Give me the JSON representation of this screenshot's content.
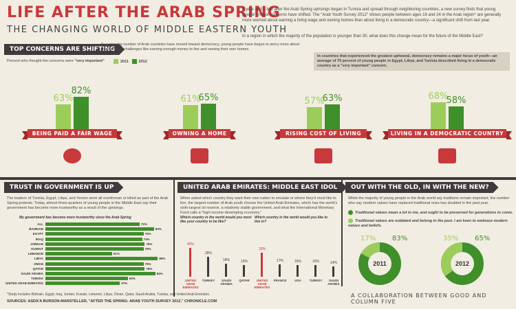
{
  "header": {
    "title": "LIFE AFTER THE ARAB SPRING",
    "subtitle": "THE CHANGING WORLD OF MIDDLE EASTERN YOUTH",
    "intro": "A year and a half after the Arab Spring uprisings began in Tunisia and spread through neighboring countries, a new survey finds that young people's major concerns have shifted. The \"Arab Youth Survey 2012\" shows people between ages 18 and 24 in the Arab region* are generally more worried about earning a living wage and owning homes than about living in a democratic country—a significant shift from last year.",
    "intro2": "In a region in which the majority of the population is younger than 30, what does this change mean for the future of the Middle East?"
  },
  "concerns": {
    "banner": "TOP CONCERNS ARE SHIFTING",
    "text": "As a growing number of Arab countries have moved toward democracy, young people have begun to worry more about smaller-scale challenges like earning enough money to live and owning their own homes.",
    "prompt_prefix": "Percent who thought the concerns were ",
    "prompt_emph": "\"very important\"",
    "legend": [
      "2011",
      "2012"
    ],
    "callout": "In countries that experienced the greatest upheaval, democracy remains a major focus of youth—an average of 70 percent of young people in Egypt, Libya, and Tunisia described living in a democratic country as a \"very important\" concern.",
    "items": [
      {
        "label": "BEING PAID A FAIR WAGE",
        "v2011": "63%",
        "v2012": "82%"
      },
      {
        "label": "OWNING A HOME",
        "v2011": "61%",
        "v2012": "65%"
      },
      {
        "label": "RISING COST OF LIVING",
        "v2011": "57%",
        "v2012": "63%"
      },
      {
        "label": "LIVING IN A DEMOCRATIC COUNTRY",
        "v2011": "68%",
        "v2012": "58%"
      }
    ]
  },
  "trust": {
    "banner": "TRUST IN GOVERNMENT IS UP",
    "text": "The leaders of Tunisia, Egypt, Libya, and Yemen were all overthrown or killed as part of the Arab Spring protests. Today, almost three-quarters of young people in the Middle East say their government has become more trustworthy as a result of the uprisings.",
    "chart_title": "My government has become more trustworthy since the Arab Spring",
    "rows": [
      {
        "name": "ALL",
        "value": 72,
        "label": "72%"
      },
      {
        "name": "BAHRAIN",
        "value": 83,
        "label": "83%"
      },
      {
        "name": "EGYPT",
        "value": 75,
        "label": "75%"
      },
      {
        "name": "IRAQ",
        "value": 74,
        "label": "74%"
      },
      {
        "name": "JORDAN",
        "value": 76,
        "label": "76%"
      },
      {
        "name": "KUWAIT",
        "value": 75,
        "label": "75%"
      },
      {
        "name": "LEBANON",
        "value": 51,
        "label": "51%"
      },
      {
        "name": "LIBYA",
        "value": 86,
        "label": "86%"
      },
      {
        "name": "OMAN",
        "value": 75,
        "label": "75%"
      },
      {
        "name": "QATAR",
        "value": 76,
        "label": "76%"
      },
      {
        "name": "SAUDI ARABIA",
        "value": 84,
        "label": "84%"
      },
      {
        "name": "TUNISIA",
        "value": 63,
        "label": "63%"
      },
      {
        "name": "UNITED ARAB EMIRATES",
        "value": 57,
        "label": "57%"
      }
    ],
    "footnote": "*Study includes Bahrain, Egypt, Iraq, Jordan, Kuwait, Lebanon, Libya, Oman, Qatar, Saudi Arabia, Tunisia, and United Arab Emirates."
  },
  "uae": {
    "banner": "UNITED ARAB EMIRATES: MIDDLE EAST IDOL",
    "text": "When asked which country they want their own nation to emulate or where they'd most like to live, the largest number of Arab youth choose the United Arab Emirates, which has the world's sixth-largest oil reserve, a relatively stable government, and what the International Monetary Fund calls a \"high-income developing economy.\"",
    "q1": "Which country in the world would you most like your country to be like?",
    "q2": "Which country in the world would you like to live in?",
    "chart1": [
      {
        "name": "UNITED ARAB EMIRATES",
        "value": 40,
        "label": "40%",
        "highlight": true
      },
      {
        "name": "TURKEY",
        "value": 28,
        "label": "28%"
      },
      {
        "name": "SAUDI ARABIA",
        "value": 18,
        "label": "18%"
      },
      {
        "name": "QATAR",
        "value": 16,
        "label": "16%"
      }
    ],
    "chart2": [
      {
        "name": "UNITED ARAB EMIRATES",
        "value": 33,
        "label": "33%",
        "highlight": true
      },
      {
        "name": "FRANCE",
        "value": 17,
        "label": "17%"
      },
      {
        "name": "USA",
        "value": 16,
        "label": "16%"
      },
      {
        "name": "TURKEY",
        "value": 16,
        "label": "16%"
      },
      {
        "name": "SAUDI ARABIA",
        "value": 14,
        "label": "14%"
      }
    ]
  },
  "values": {
    "banner": "OUT WITH THE OLD, IN WITH THE NEW?",
    "text": "While the majority of young people in the Arab world say traditions remain important, the number who say modern values have replaced traditional ones has doubled in the past year.",
    "opt1": "Traditional values mean a lot to me, and ought to be preserved for generations to come.",
    "opt2": "Traditional values are outdated and belong in the past. I am keen to embrace modern values and beliefs.",
    "donuts": [
      {
        "year": "2011",
        "modern": 17,
        "traditional": 83,
        "modern_label": "17%",
        "traditional_label": "83%"
      },
      {
        "year": "2012",
        "modern": 35,
        "traditional": 65,
        "modern_label": "35%",
        "traditional_label": "65%"
      }
    ]
  },
  "footer": {
    "sources": "SOURCES: ASDA'A BURSON-MARSTELLER, \"AFTER THE SPRING: ARAB YOUTH SURVEY 2012,\" CHRONICLE.COM",
    "credit": "A COLLABORATION BETWEEN GOOD AND COLUMN FIVE"
  },
  "colors": {
    "red": "#c8393b",
    "dark_green": "#3f8f2a",
    "light_green": "#9ccd5a",
    "dark": "#3f3a3b",
    "bg": "#f1ede2"
  }
}
